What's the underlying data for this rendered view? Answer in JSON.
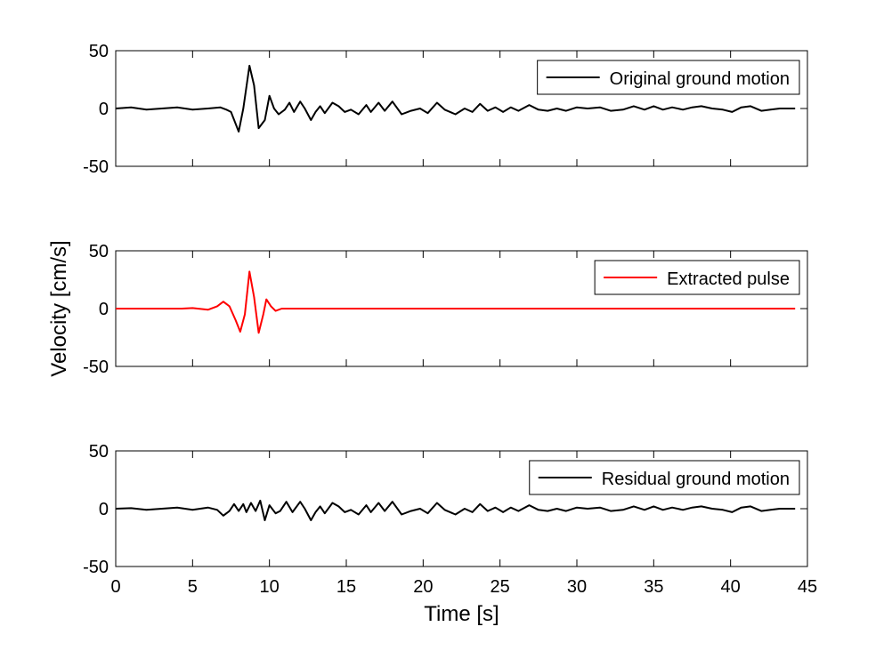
{
  "chart_data": [
    {
      "type": "line",
      "x": [
        0,
        1,
        2,
        3,
        4,
        5,
        6,
        6.8,
        7.2,
        7.5,
        8.0,
        8.3,
        8.7,
        9.0,
        9.3,
        9.7,
        10.0,
        10.3,
        10.6,
        11,
        11.3,
        11.6,
        12,
        12.3,
        12.7,
        13,
        13.3,
        13.6,
        14.1,
        14.5,
        14.9,
        15.3,
        15.8,
        16.3,
        16.6,
        17.1,
        17.5,
        18.0,
        18.6,
        19.2,
        19.8,
        20.3,
        20.9,
        21.4,
        22.1,
        22.7,
        23.2,
        23.7,
        24.2,
        24.7,
        25.2,
        25.7,
        26.2,
        26.9,
        27.5,
        28.1,
        28.7,
        29.3,
        30.0,
        30.7,
        31.5,
        32.2,
        33.0,
        33.7,
        34.4,
        35.0,
        35.6,
        36.2,
        36.9,
        37.5,
        38.1,
        38.8,
        39.5,
        40.1,
        40.7,
        41.3,
        42,
        42.6,
        43.2,
        44.2
      ],
      "series": [
        {
          "name": "Original ground motion",
          "color": "#000000",
          "values": [
            0,
            1,
            -1,
            0,
            1,
            -1,
            0,
            1,
            -1,
            -3,
            -20,
            0,
            37,
            20,
            -17,
            -10,
            11,
            0,
            -5,
            -1,
            5,
            -3,
            6,
            0,
            -10,
            -3,
            2,
            -4,
            5,
            2,
            -3,
            -1,
            -5,
            3,
            -3,
            5,
            -2,
            6,
            -5,
            -2,
            0,
            -4,
            5,
            -1,
            -5,
            0,
            -3,
            4,
            -2,
            1,
            -3,
            1,
            -2,
            3,
            -1,
            -2,
            0,
            -2,
            1,
            0,
            1,
            -2,
            -1,
            2,
            -1,
            2,
            -1,
            1,
            -1,
            1,
            2,
            0,
            -1,
            -3,
            1,
            2,
            -2,
            -1,
            0,
            0
          ]
        }
      ],
      "xlim": [
        0,
        45
      ],
      "xticks": [
        0,
        5,
        10,
        15,
        20,
        25,
        30,
        35,
        40,
        45
      ],
      "ylim": [
        -50,
        50
      ],
      "yticks": [
        -50,
        0,
        50
      ],
      "legend": "upper right"
    },
    {
      "type": "line",
      "x": [
        0,
        4.3,
        5,
        6,
        6.6,
        7.0,
        7.4,
        7.8,
        8.1,
        8.4,
        8.7,
        9.0,
        9.3,
        9.6,
        9.8,
        10.1,
        10.4,
        10.8,
        12,
        44.2
      ],
      "series": [
        {
          "name": "Extracted pulse",
          "color": "#ff0000",
          "values": [
            0,
            0,
            0.5,
            -1,
            2,
            6,
            2,
            -10,
            -20,
            -5,
            32,
            10,
            -21,
            -5,
            8,
            2,
            -2,
            0,
            0,
            0
          ]
        }
      ],
      "ylabel": "Velocity [cm/s]",
      "xlim": [
        0,
        45
      ],
      "xticks": [
        0,
        5,
        10,
        15,
        20,
        25,
        30,
        35,
        40,
        45
      ],
      "ylim": [
        -50,
        50
      ],
      "yticks": [
        -50,
        0,
        50
      ],
      "legend": "upper right"
    },
    {
      "type": "line",
      "x": [
        0,
        1,
        2,
        3,
        4,
        5,
        6,
        6.6,
        7.0,
        7.4,
        7.7,
        8.0,
        8.3,
        8.5,
        8.8,
        9.1,
        9.4,
        9.7,
        10.0,
        10.4,
        10.7,
        11.1,
        11.5,
        12,
        12.3,
        12.7,
        13,
        13.3,
        13.6,
        14.1,
        14.5,
        14.9,
        15.3,
        15.8,
        16.3,
        16.6,
        17.1,
        17.5,
        18.0,
        18.6,
        19.2,
        19.8,
        20.3,
        20.9,
        21.4,
        22.1,
        22.7,
        23.2,
        23.7,
        24.2,
        24.7,
        25.2,
        25.7,
        26.2,
        26.9,
        27.5,
        28.1,
        28.7,
        29.3,
        30.0,
        30.7,
        31.5,
        32.2,
        33.0,
        33.7,
        34.4,
        35.0,
        35.6,
        36.2,
        36.9,
        37.5,
        38.1,
        38.8,
        39.5,
        40.1,
        40.7,
        41.3,
        42,
        42.6,
        43.2,
        44.2
      ],
      "series": [
        {
          "name": "Residual ground motion",
          "color": "#000000",
          "values": [
            0,
            0.5,
            -1,
            0,
            1,
            -1,
            1,
            -1,
            -6,
            -2,
            4,
            -2,
            4,
            -3,
            5,
            -2,
            7,
            -10,
            3,
            -4,
            -2,
            6,
            -3,
            6,
            0,
            -10,
            -3,
            2,
            -4,
            5,
            2,
            -3,
            -1,
            -5,
            3,
            -3,
            5,
            -2,
            6,
            -5,
            -2,
            0,
            -4,
            5,
            -1,
            -5,
            0,
            -3,
            4,
            -2,
            1,
            -3,
            1,
            -2,
            3,
            -1,
            -2,
            0,
            -2,
            1,
            0,
            1,
            -2,
            -1,
            2,
            -1,
            2,
            -1,
            1,
            -1,
            1,
            2,
            0,
            -1,
            -3,
            1,
            2,
            -2,
            -1,
            0,
            0
          ]
        }
      ],
      "xlabel": "Time [s]",
      "xlim": [
        0,
        45
      ],
      "xticks": [
        0,
        5,
        10,
        15,
        20,
        25,
        30,
        35,
        40,
        45
      ],
      "ylim": [
        -50,
        50
      ],
      "yticks": [
        -50,
        0,
        50
      ],
      "legend": "upper right"
    }
  ]
}
